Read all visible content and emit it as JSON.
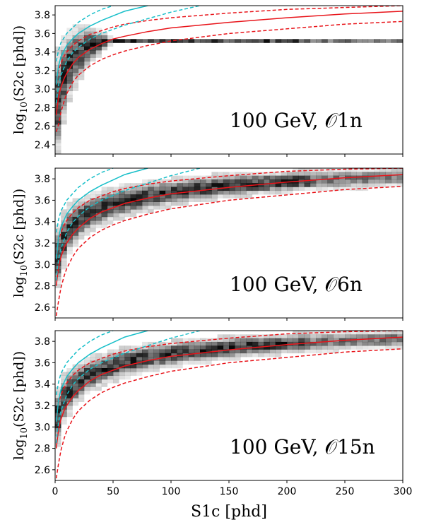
{
  "chart_data": [
    {
      "type": "heatmap",
      "title": "",
      "annotation": "100 GeV, 𝒪1n",
      "xlabel": "",
      "ylabel": "log10(S2c [phd])",
      "xlim": [
        0,
        300
      ],
      "ylim": [
        2.3,
        3.9
      ],
      "yticks": [
        "2.4",
        "2.6",
        "2.8",
        "3.0",
        "3.2",
        "3.4",
        "3.6",
        "3.8"
      ],
      "xticks": [],
      "band": {
        "x": [
          1,
          2,
          4,
          6,
          8,
          10,
          14,
          20,
          25,
          30,
          40,
          50
        ],
        "low": [
          2.3,
          2.35,
          2.45,
          2.6,
          2.75,
          2.85,
          3.0,
          3.1,
          3.2,
          3.3,
          3.4,
          3.5
        ],
        "high": [
          3.2,
          3.3,
          3.4,
          3.45,
          3.5,
          3.55,
          3.6,
          3.65,
          3.65,
          3.65,
          3.6,
          3.55
        ]
      },
      "series": [
        {
          "name": "",
          "style": "red-solid",
          "x": [
            1,
            3,
            5,
            8,
            10,
            15,
            20,
            30,
            40,
            50,
            60,
            80,
            100,
            150,
            200,
            250,
            300
          ],
          "y": [
            2.72,
            2.92,
            3.02,
            3.12,
            3.17,
            3.27,
            3.34,
            3.43,
            3.49,
            3.54,
            3.57,
            3.62,
            3.66,
            3.72,
            3.77,
            3.81,
            3.84
          ]
        },
        {
          "name": "",
          "style": "red-dashed",
          "x": [
            1,
            3,
            5,
            8,
            10,
            15,
            20,
            30,
            40,
            50,
            60,
            80,
            100,
            150,
            200,
            250,
            300
          ],
          "y": [
            3.05,
            3.2,
            3.28,
            3.36,
            3.4,
            3.47,
            3.52,
            3.59,
            3.63,
            3.67,
            3.7,
            3.74,
            3.77,
            3.82,
            3.86,
            3.88,
            3.9
          ]
        },
        {
          "name": "",
          "style": "red-dashed",
          "x": [
            1,
            3,
            5,
            8,
            10,
            15,
            20,
            30,
            40,
            50,
            60,
            80,
            100,
            150,
            200,
            250,
            300
          ],
          "y": [
            2.54,
            2.62,
            2.75,
            2.88,
            2.95,
            3.07,
            3.15,
            3.25,
            3.32,
            3.37,
            3.41,
            3.47,
            3.52,
            3.6,
            3.65,
            3.7,
            3.73
          ]
        },
        {
          "name": "",
          "style": "cyan-solid",
          "x": [
            1,
            3,
            5,
            10,
            15,
            20,
            30,
            40,
            50,
            60,
            70,
            80
          ],
          "y": [
            3.05,
            3.25,
            3.35,
            3.47,
            3.54,
            3.6,
            3.68,
            3.74,
            3.79,
            3.84,
            3.87,
            3.9
          ]
        },
        {
          "name": "",
          "style": "cyan-dashed",
          "x": [
            1,
            3,
            5,
            10,
            15,
            20,
            30,
            40,
            50
          ],
          "y": [
            3.3,
            3.42,
            3.5,
            3.6,
            3.66,
            3.72,
            3.8,
            3.86,
            3.9
          ]
        },
        {
          "name": "",
          "style": "cyan-dashed",
          "x": [
            1,
            3,
            5,
            10,
            15,
            20,
            30,
            40,
            60,
            80,
            100,
            125
          ],
          "y": [
            2.85,
            3.05,
            3.15,
            3.3,
            3.39,
            3.45,
            3.54,
            3.6,
            3.69,
            3.76,
            3.83,
            3.9
          ]
        }
      ]
    },
    {
      "type": "heatmap",
      "title": "",
      "annotation": "100 GeV, 𝒪6n",
      "xlabel": "",
      "ylabel": "log10(S2c [phd])",
      "xlim": [
        0,
        300
      ],
      "ylim": [
        2.5,
        3.9
      ],
      "yticks": [
        "2.6",
        "2.8",
        "3.0",
        "3.2",
        "3.4",
        "3.6",
        "3.8"
      ],
      "xticks": [],
      "band": {
        "x": [
          2,
          5,
          10,
          20,
          30,
          50,
          80,
          120,
          160,
          200,
          250,
          300
        ],
        "low": [
          2.8,
          2.95,
          3.1,
          3.25,
          3.33,
          3.43,
          3.52,
          3.6,
          3.65,
          3.69,
          3.72,
          3.74
        ],
        "high": [
          3.3,
          3.4,
          3.5,
          3.58,
          3.63,
          3.7,
          3.76,
          3.81,
          3.84,
          3.86,
          3.88,
          3.9
        ]
      },
      "series": [
        {
          "name": "",
          "style": "red-solid",
          "x": [
            1,
            3,
            5,
            8,
            10,
            15,
            20,
            30,
            40,
            50,
            60,
            80,
            100,
            150,
            200,
            250,
            300
          ],
          "y": [
            2.8,
            2.98,
            3.07,
            3.16,
            3.2,
            3.28,
            3.34,
            3.43,
            3.49,
            3.53,
            3.57,
            3.62,
            3.66,
            3.72,
            3.77,
            3.81,
            3.84
          ]
        },
        {
          "name": "",
          "style": "red-dashed",
          "x": [
            1,
            3,
            5,
            8,
            10,
            15,
            20,
            30,
            40,
            50,
            60,
            80,
            100,
            150,
            200,
            250,
            300
          ],
          "y": [
            3.1,
            3.22,
            3.3,
            3.37,
            3.41,
            3.48,
            3.53,
            3.6,
            3.64,
            3.68,
            3.71,
            3.75,
            3.78,
            3.83,
            3.87,
            3.89,
            3.9
          ]
        },
        {
          "name": "",
          "style": "red-dashed",
          "x": [
            1,
            3,
            5,
            8,
            10,
            15,
            20,
            30,
            40,
            50,
            60,
            80,
            100,
            150,
            200,
            250,
            300
          ],
          "y": [
            2.52,
            2.66,
            2.78,
            2.9,
            2.96,
            3.07,
            3.15,
            3.25,
            3.32,
            3.37,
            3.41,
            3.47,
            3.52,
            3.6,
            3.65,
            3.7,
            3.73
          ]
        },
        {
          "name": "",
          "style": "cyan-solid",
          "x": [
            1,
            3,
            5,
            10,
            15,
            20,
            30,
            40,
            50,
            60,
            70,
            80
          ],
          "y": [
            3.05,
            3.25,
            3.35,
            3.47,
            3.54,
            3.6,
            3.68,
            3.74,
            3.79,
            3.84,
            3.87,
            3.9
          ]
        },
        {
          "name": "",
          "style": "cyan-dashed",
          "x": [
            1,
            3,
            5,
            10,
            15,
            20,
            30,
            40,
            50
          ],
          "y": [
            3.3,
            3.42,
            3.5,
            3.6,
            3.66,
            3.72,
            3.8,
            3.86,
            3.9
          ]
        },
        {
          "name": "",
          "style": "cyan-dashed",
          "x": [
            1,
            3,
            5,
            10,
            15,
            20,
            30,
            40,
            60,
            80,
            100,
            125
          ],
          "y": [
            2.85,
            3.05,
            3.15,
            3.3,
            3.39,
            3.45,
            3.54,
            3.6,
            3.69,
            3.76,
            3.83,
            3.9
          ]
        }
      ]
    },
    {
      "type": "heatmap",
      "title": "",
      "annotation": "100 GeV, 𝒪15n",
      "xlabel": "S1c [phd]",
      "ylabel": "log10(S2c [phd])",
      "xlim": [
        0,
        300
      ],
      "ylim": [
        2.5,
        3.9
      ],
      "yticks": [
        "2.6",
        "2.8",
        "3.0",
        "3.2",
        "3.4",
        "3.6",
        "3.8"
      ],
      "xticks": [
        "0",
        "50",
        "100",
        "150",
        "200",
        "250",
        "300"
      ],
      "band": {
        "x": [
          2,
          5,
          10,
          20,
          30,
          50,
          80,
          120,
          160,
          200,
          250,
          300
        ],
        "low": [
          2.85,
          3.0,
          3.12,
          3.27,
          3.35,
          3.45,
          3.54,
          3.61,
          3.66,
          3.7,
          3.73,
          3.75
        ],
        "high": [
          3.3,
          3.4,
          3.5,
          3.58,
          3.63,
          3.7,
          3.76,
          3.81,
          3.84,
          3.86,
          3.88,
          3.9
        ]
      },
      "series": [
        {
          "name": "",
          "style": "red-solid",
          "x": [
            1,
            3,
            5,
            8,
            10,
            15,
            20,
            30,
            40,
            50,
            60,
            80,
            100,
            150,
            200,
            250,
            300
          ],
          "y": [
            2.8,
            2.98,
            3.07,
            3.16,
            3.2,
            3.28,
            3.34,
            3.43,
            3.49,
            3.53,
            3.57,
            3.62,
            3.66,
            3.72,
            3.77,
            3.81,
            3.84
          ]
        },
        {
          "name": "",
          "style": "red-dashed",
          "x": [
            1,
            3,
            5,
            8,
            10,
            15,
            20,
            30,
            40,
            50,
            60,
            80,
            100,
            150,
            200,
            250,
            300
          ],
          "y": [
            3.1,
            3.22,
            3.3,
            3.37,
            3.41,
            3.48,
            3.53,
            3.6,
            3.64,
            3.68,
            3.71,
            3.75,
            3.78,
            3.83,
            3.87,
            3.89,
            3.9
          ]
        },
        {
          "name": "",
          "style": "red-dashed",
          "x": [
            1,
            3,
            5,
            8,
            10,
            15,
            20,
            30,
            40,
            50,
            60,
            80,
            100,
            150,
            200,
            250,
            300
          ],
          "y": [
            2.52,
            2.66,
            2.78,
            2.9,
            2.96,
            3.07,
            3.15,
            3.25,
            3.32,
            3.37,
            3.41,
            3.47,
            3.52,
            3.6,
            3.65,
            3.7,
            3.73
          ]
        },
        {
          "name": "",
          "style": "cyan-solid",
          "x": [
            1,
            3,
            5,
            10,
            15,
            20,
            30,
            40,
            50,
            60,
            70,
            80
          ],
          "y": [
            3.05,
            3.25,
            3.35,
            3.47,
            3.54,
            3.6,
            3.68,
            3.74,
            3.79,
            3.84,
            3.87,
            3.9
          ]
        },
        {
          "name": "",
          "style": "cyan-dashed",
          "x": [
            1,
            3,
            5,
            10,
            15,
            20,
            30,
            40,
            50
          ],
          "y": [
            3.3,
            3.42,
            3.5,
            3.6,
            3.66,
            3.72,
            3.8,
            3.86,
            3.9
          ]
        },
        {
          "name": "",
          "style": "cyan-dashed",
          "x": [
            1,
            3,
            5,
            10,
            15,
            20,
            30,
            40,
            60,
            80,
            100,
            125
          ],
          "y": [
            2.85,
            3.05,
            3.15,
            3.3,
            3.39,
            3.45,
            3.54,
            3.6,
            3.69,
            3.76,
            3.83,
            3.9
          ]
        }
      ]
    }
  ],
  "colors": {
    "red": "#e8141a",
    "cyan": "#17bfc9",
    "density": "#000000"
  }
}
